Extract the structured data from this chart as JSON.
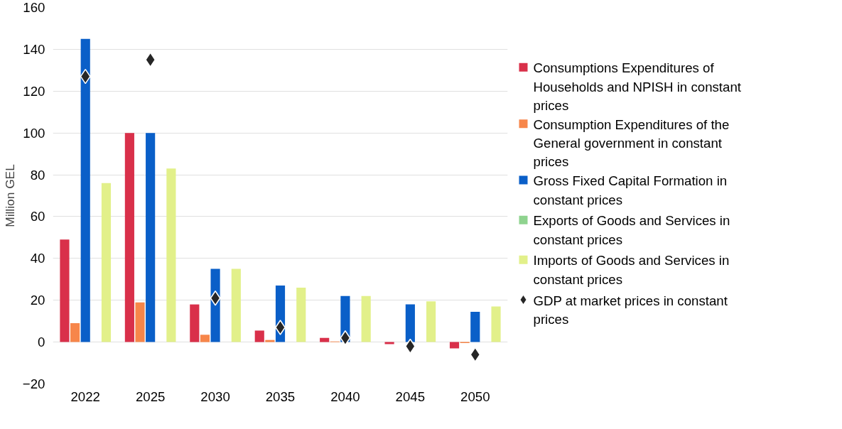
{
  "chart_data": {
    "type": "bar",
    "ylabel": "Million GEL",
    "categories": [
      "2022",
      "2025",
      "2030",
      "2035",
      "2040",
      "2045",
      "2050"
    ],
    "series": [
      {
        "name": "Consumptions Expenditures of Households and NPISH in constant prices",
        "color": "#d9304a",
        "values": [
          49,
          100,
          18,
          5.5,
          2,
          -1,
          -3
        ]
      },
      {
        "name": "Consumption Expenditures of the General government  in constant prices",
        "color": "#f7864a",
        "values": [
          9,
          19,
          3.5,
          1,
          0.3,
          null,
          -0.5
        ]
      },
      {
        "name": "Gross Fixed Capital Formation  in constant prices",
        "color": "#0a5fc8",
        "values": [
          145,
          100,
          35,
          27,
          22,
          18,
          14.5
        ]
      },
      {
        "name": "Exports of Goods and Services  in constant prices",
        "color": "#8fd38f",
        "values": [
          0,
          0,
          0,
          0,
          0,
          0,
          0
        ]
      },
      {
        "name": "Imports of Goods and Services in constant prices",
        "color": "#e2f08a",
        "values": [
          76,
          83,
          35,
          26,
          22,
          19.5,
          17
        ]
      },
      {
        "name": "GDP at market prices in constant prices",
        "type": "scatter",
        "marker": "diamond",
        "color": "#262626",
        "values": [
          127,
          135,
          21,
          7,
          2,
          -2,
          -6
        ]
      }
    ],
    "ylim": [
      -20,
      160
    ],
    "yticks": [
      -20,
      0,
      20,
      40,
      60,
      80,
      100,
      120,
      140,
      160
    ],
    "grid": "y",
    "legend": "right"
  }
}
